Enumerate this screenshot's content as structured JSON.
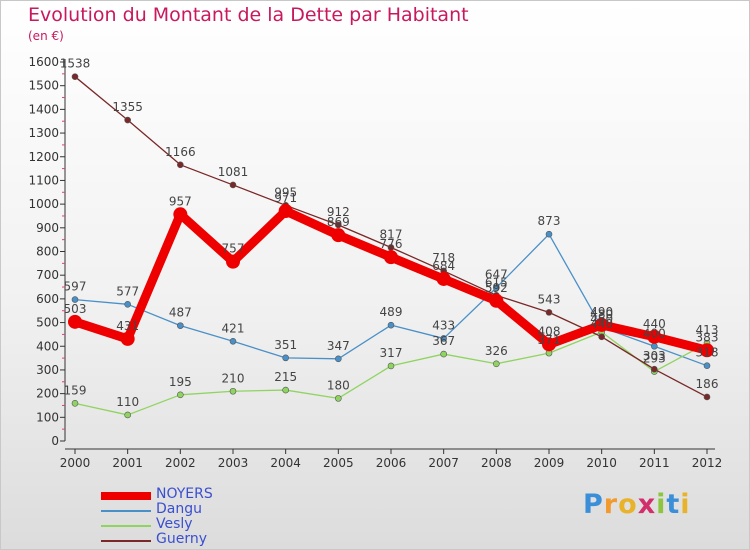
{
  "title": "Evolution du Montant de la Dette par Habitant",
  "unit": "(en €)",
  "logo": {
    "letters": [
      "P",
      "r",
      "o",
      "x",
      "i",
      "t",
      "i"
    ],
    "colors": [
      "#3a8fd8",
      "#f29a2e",
      "#e8b32a",
      "#d22e6c",
      "#8cc63f",
      "#3a8fd8",
      "#e8b32a"
    ]
  },
  "chart_data": {
    "type": "line",
    "categories": [
      "2000",
      "2001",
      "2002",
      "2003",
      "2004",
      "2005",
      "2006",
      "2007",
      "2008",
      "2009",
      "2010",
      "2011",
      "2012"
    ],
    "ylim": [
      0,
      1600
    ],
    "yticks": [
      "0",
      "100",
      "200",
      "300",
      "400",
      "500",
      "600",
      "700",
      "800",
      "900",
      "1000",
      "1100",
      "1200",
      "1300",
      "1400",
      "1500",
      "1600"
    ],
    "grid": false,
    "legend_position": "bottom-left",
    "series": [
      {
        "name": "NOYERS",
        "color": "#ee0000",
        "values": [
          503,
          431,
          957,
          757,
          971,
          869,
          776,
          684,
          592,
          408,
          490,
          440,
          383
        ]
      },
      {
        "name": "Dangu",
        "color": "#4a90c8",
        "values": [
          597,
          577,
          487,
          421,
          351,
          347,
          489,
          433,
          647,
          873,
          480,
          400,
          318
        ]
      },
      {
        "name": "Vesly",
        "color": "#8fd460",
        "values": [
          159,
          110,
          195,
          210,
          215,
          180,
          317,
          367,
          326,
          371,
          460,
          293,
          413
        ]
      },
      {
        "name": "Guerny",
        "color": "#7a2828",
        "values": [
          1538,
          1355,
          1166,
          1081,
          995,
          912,
          817,
          718,
          615,
          543,
          440,
          303,
          186
        ]
      }
    ]
  }
}
